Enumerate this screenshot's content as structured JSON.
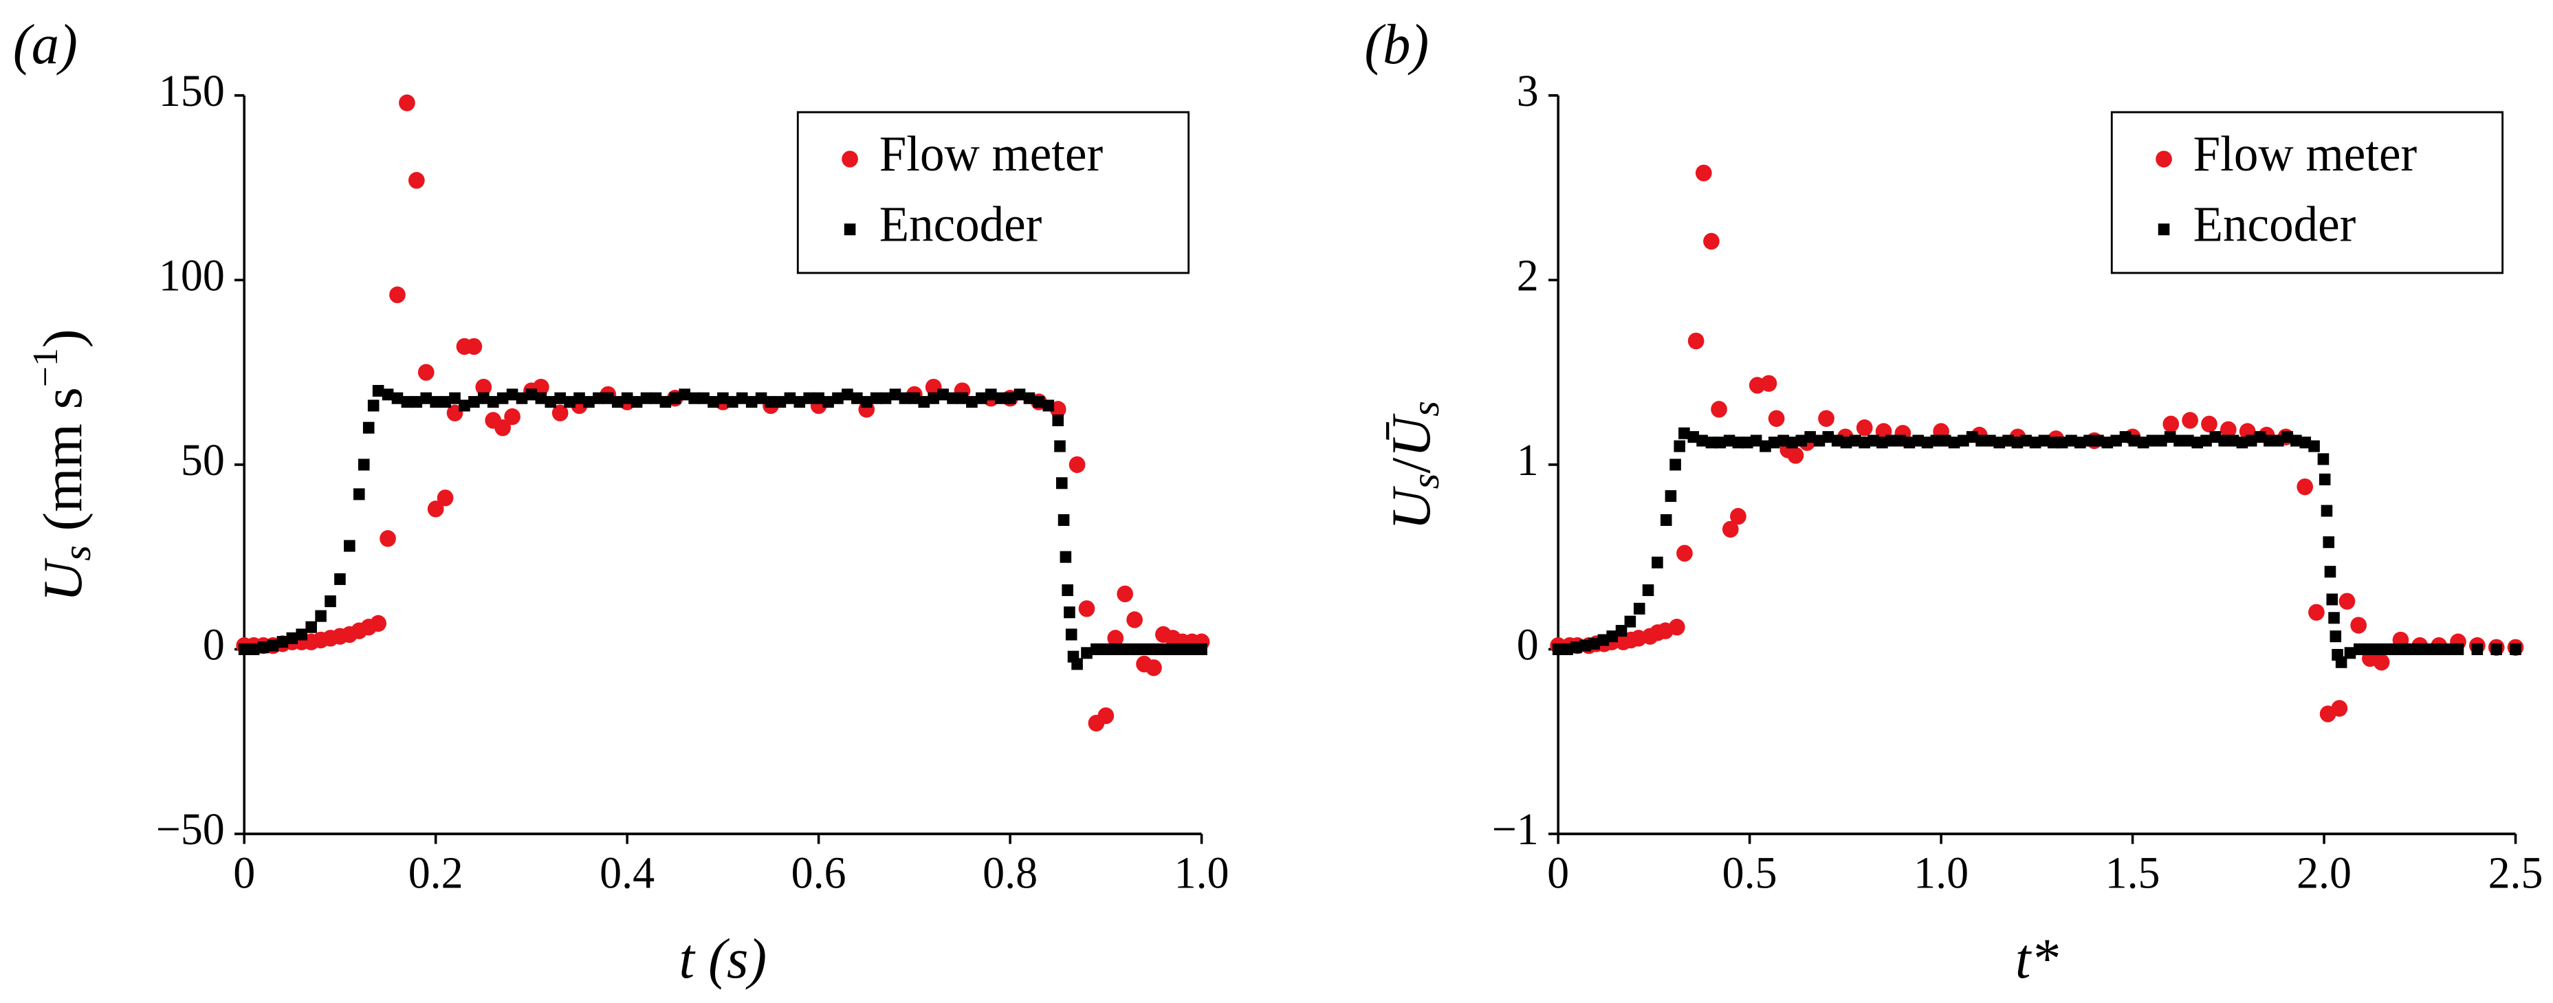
{
  "chart_data": [
    {
      "type": "scatter",
      "title": "(a)",
      "x_label": "t (s)",
      "y_label": [
        "U",
        "s",
        " (mm s",
        "−1",
        ")"
      ],
      "xlim": [
        0,
        1
      ],
      "ylim": [
        -50,
        150
      ],
      "xticks": [
        0,
        0.2,
        0.4,
        0.6,
        0.8,
        {
          "value": 1,
          "label": "1.0"
        }
      ],
      "yticks": [
        {
          "value": -50,
          "label": "−50"
        },
        0,
        50,
        100,
        150
      ],
      "legend": "upper right",
      "series": [
        {
          "name": "Flow meter",
          "color": "#e8161e",
          "marker": "circle",
          "x": [
            0,
            0.01,
            0.02,
            0.03,
            0.04,
            0.05,
            0.06,
            0.07,
            0.08,
            0.09,
            0.1,
            0.11,
            0.12,
            0.13,
            0.14,
            0.15,
            0.16,
            0.17,
            0.18,
            0.19,
            0.2,
            0.21,
            0.22,
            0.23,
            0.24,
            0.25,
            0.26,
            0.27,
            0.28,
            0.3,
            0.31,
            0.33,
            0.35,
            0.38,
            0.4,
            0.45,
            0.5,
            0.55,
            0.6,
            0.65,
            0.7,
            0.72,
            0.75,
            0.78,
            0.8,
            0.83,
            0.85,
            0.87,
            0.88,
            0.89,
            0.9,
            0.91,
            0.92,
            0.93,
            0.94,
            0.95,
            0.96,
            0.97,
            0.98,
            0.99,
            1.0
          ],
          "values": [
            1,
            1,
            1,
            1,
            1.5,
            2,
            2,
            2,
            2.5,
            3,
            3.5,
            4,
            5,
            6,
            7,
            30,
            96,
            148,
            127,
            75,
            38,
            41,
            64,
            82,
            82,
            71,
            62,
            60,
            63,
            70,
            71,
            64,
            66,
            69,
            67,
            68,
            67,
            66,
            66,
            65,
            69,
            71,
            70,
            68,
            68,
            67,
            65,
            50,
            11,
            -20,
            -18,
            3,
            15,
            8,
            -4,
            -5,
            4,
            3,
            2,
            2,
            2
          ]
        },
        {
          "name": "Encoder",
          "color": "#000000",
          "marker": "square",
          "x": [
            0,
            0.01,
            0.02,
            0.03,
            0.04,
            0.05,
            0.06,
            0.07,
            0.08,
            0.09,
            0.1,
            0.11,
            0.12,
            0.125,
            0.13,
            0.135,
            0.14,
            0.15,
            0.16,
            0.17,
            0.18,
            0.19,
            0.2,
            0.21,
            0.22,
            0.23,
            0.24,
            0.25,
            0.26,
            0.27,
            0.28,
            0.29,
            0.3,
            0.31,
            0.32,
            0.33,
            0.34,
            0.35,
            0.36,
            0.37,
            0.38,
            0.39,
            0.4,
            0.41,
            0.42,
            0.43,
            0.44,
            0.45,
            0.46,
            0.47,
            0.48,
            0.49,
            0.5,
            0.51,
            0.52,
            0.53,
            0.54,
            0.55,
            0.56,
            0.57,
            0.58,
            0.59,
            0.6,
            0.61,
            0.62,
            0.63,
            0.64,
            0.65,
            0.66,
            0.67,
            0.68,
            0.69,
            0.7,
            0.71,
            0.72,
            0.73,
            0.74,
            0.75,
            0.76,
            0.77,
            0.78,
            0.79,
            0.8,
            0.81,
            0.82,
            0.83,
            0.84,
            0.85,
            0.852,
            0.854,
            0.856,
            0.858,
            0.86,
            0.862,
            0.864,
            0.866,
            0.87,
            0.88,
            0.89,
            0.9,
            0.91,
            0.92,
            0.93,
            0.94,
            0.95,
            0.96,
            0.97,
            0.98,
            0.99,
            1.0
          ],
          "values": [
            0,
            0,
            0.5,
            1,
            2,
            3,
            4,
            6,
            9,
            13,
            19,
            28,
            42,
            50,
            60,
            66,
            70,
            69,
            68,
            67,
            67,
            68,
            67,
            67,
            68,
            66,
            67,
            68,
            67,
            68,
            69,
            68,
            69,
            68,
            67,
            68,
            67,
            68,
            67,
            68,
            68,
            67,
            68,
            67,
            68,
            68,
            67,
            68,
            69,
            68,
            68,
            67,
            68,
            67,
            68,
            67,
            68,
            67,
            67,
            68,
            67,
            68,
            68,
            67,
            68,
            69,
            68,
            67,
            68,
            68,
            69,
            68,
            68,
            67,
            68,
            69,
            68,
            68,
            67,
            68,
            69,
            68,
            68,
            69,
            68,
            67,
            66,
            62,
            55,
            45,
            35,
            25,
            16,
            10,
            4,
            -2,
            -4,
            -1,
            0,
            0,
            0,
            0,
            0,
            0,
            0,
            0,
            0,
            0,
            0,
            0
          ]
        }
      ]
    },
    {
      "type": "scatter",
      "title": "(b)",
      "x_label": "t*",
      "y_label": [
        "U",
        "s",
        "/",
        "Ū",
        "s"
      ],
      "xlim": [
        0,
        2.5
      ],
      "ylim": [
        -1,
        3
      ],
      "xticks": [
        0,
        0.5,
        {
          "value": 1,
          "label": "1.0"
        },
        1.5,
        {
          "value": 2,
          "label": "2.0"
        },
        2.5
      ],
      "yticks": [
        {
          "value": -1,
          "label": "−1"
        },
        0,
        1,
        2,
        3
      ],
      "legend": "upper right",
      "series": [
        {
          "name": "Flow meter",
          "color": "#e8161e",
          "marker": "circle",
          "x": [
            0,
            0.03,
            0.05,
            0.08,
            0.1,
            0.12,
            0.14,
            0.17,
            0.19,
            0.21,
            0.24,
            0.26,
            0.28,
            0.31,
            0.33,
            0.36,
            0.38,
            0.4,
            0.42,
            0.45,
            0.47,
            0.52,
            0.55,
            0.57,
            0.6,
            0.62,
            0.65,
            0.7,
            0.75,
            0.8,
            0.85,
            0.9,
            1.0,
            1.1,
            1.2,
            1.3,
            1.4,
            1.5,
            1.6,
            1.65,
            1.7,
            1.75,
            1.8,
            1.85,
            1.9,
            1.95,
            1.98,
            2.01,
            2.04,
            2.06,
            2.09,
            2.12,
            2.15,
            2.2,
            2.25,
            2.3,
            2.35,
            2.4,
            2.45,
            2.5
          ],
          "values": [
            0.02,
            0.02,
            0.02,
            0.02,
            0.03,
            0.03,
            0.04,
            0.04,
            0.05,
            0.06,
            0.07,
            0.09,
            0.1,
            0.12,
            0.52,
            1.67,
            2.58,
            2.21,
            1.3,
            0.65,
            0.72,
            1.43,
            1.44,
            1.25,
            1.08,
            1.05,
            1.12,
            1.25,
            1.15,
            1.2,
            1.18,
            1.17,
            1.18,
            1.16,
            1.15,
            1.14,
            1.13,
            1.15,
            1.22,
            1.24,
            1.22,
            1.19,
            1.18,
            1.16,
            1.15,
            0.88,
            0.2,
            -0.35,
            -0.32,
            0.26,
            0.13,
            -0.05,
            -0.07,
            0.05,
            0.02,
            0.02,
            0.04,
            0.02,
            0.01,
            0.01
          ]
        },
        {
          "name": "Encoder",
          "color": "#000000",
          "marker": "square",
          "x": [
            0,
            0.024,
            0.047,
            0.071,
            0.094,
            0.118,
            0.141,
            0.165,
            0.188,
            0.212,
            0.235,
            0.259,
            0.282,
            0.294,
            0.306,
            0.317,
            0.329,
            0.353,
            0.376,
            0.4,
            0.423,
            0.447,
            0.47,
            0.494,
            0.517,
            0.541,
            0.564,
            0.588,
            0.611,
            0.635,
            0.658,
            0.682,
            0.705,
            0.729,
            0.752,
            0.776,
            0.8,
            0.823,
            0.846,
            0.87,
            0.893,
            0.917,
            0.94,
            0.964,
            0.987,
            1.011,
            1.034,
            1.058,
            1.081,
            1.105,
            1.128,
            1.152,
            1.175,
            1.199,
            1.222,
            1.246,
            1.269,
            1.293,
            1.316,
            1.34,
            1.363,
            1.387,
            1.41,
            1.434,
            1.457,
            1.481,
            1.504,
            1.528,
            1.551,
            1.575,
            1.598,
            1.622,
            1.645,
            1.669,
            1.692,
            1.716,
            1.739,
            1.763,
            1.786,
            1.81,
            1.833,
            1.857,
            1.88,
            1.904,
            1.927,
            1.951,
            1.974,
            1.998,
            2.002,
            2.007,
            2.012,
            2.016,
            2.021,
            2.026,
            2.03,
            2.035,
            2.045,
            2.068,
            2.092,
            2.115,
            2.139,
            2.162,
            2.186,
            2.209,
            2.233,
            2.256,
            2.28,
            2.303,
            2.327,
            2.35,
            2.4,
            2.45,
            2.5
          ],
          "values": [
            0,
            0,
            0.01,
            0.02,
            0.03,
            0.05,
            0.07,
            0.1,
            0.15,
            0.22,
            0.32,
            0.47,
            0.7,
            0.83,
            1,
            1.1,
            1.17,
            1.15,
            1.13,
            1.12,
            1.12,
            1.13,
            1.12,
            1.12,
            1.13,
            1.1,
            1.12,
            1.13,
            1.12,
            1.13,
            1.15,
            1.13,
            1.15,
            1.13,
            1.12,
            1.13,
            1.12,
            1.13,
            1.12,
            1.13,
            1.13,
            1.12,
            1.13,
            1.12,
            1.13,
            1.13,
            1.12,
            1.13,
            1.15,
            1.13,
            1.13,
            1.12,
            1.13,
            1.12,
            1.13,
            1.12,
            1.13,
            1.12,
            1.12,
            1.13,
            1.12,
            1.13,
            1.13,
            1.12,
            1.13,
            1.15,
            1.13,
            1.12,
            1.13,
            1.13,
            1.15,
            1.13,
            1.13,
            1.12,
            1.13,
            1.15,
            1.13,
            1.13,
            1.12,
            1.13,
            1.15,
            1.13,
            1.13,
            1.15,
            1.13,
            1.12,
            1.1,
            1.03,
            0.92,
            0.75,
            0.58,
            0.42,
            0.27,
            0.17,
            0.07,
            -0.03,
            -0.07,
            -0.02,
            0,
            0,
            0,
            0,
            0,
            0,
            0,
            0,
            0,
            0,
            0,
            0,
            0,
            0,
            0
          ]
        }
      ]
    }
  ]
}
